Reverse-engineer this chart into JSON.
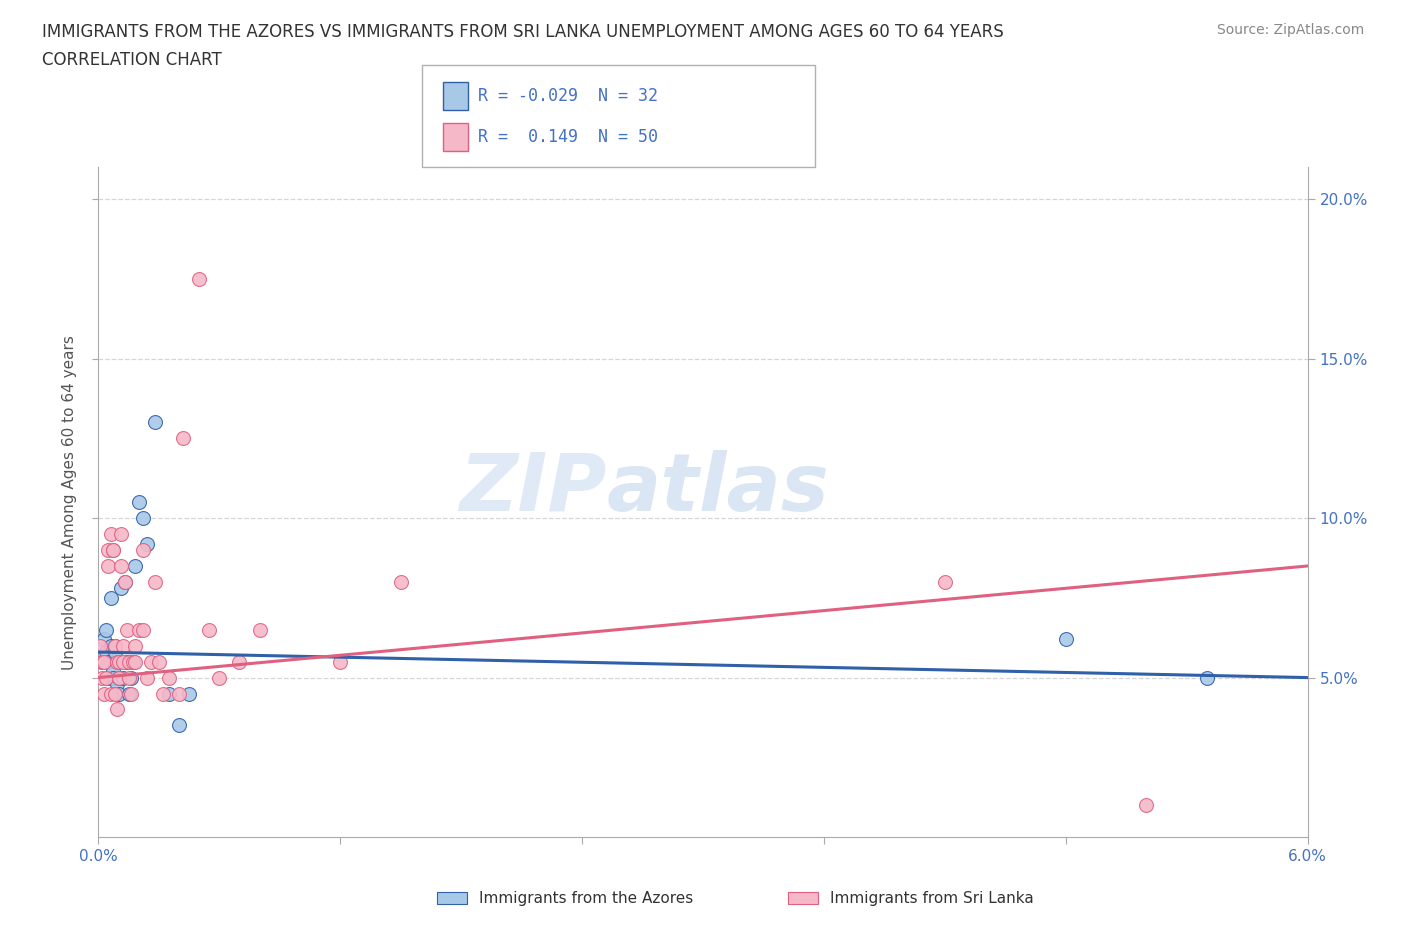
{
  "title_line1": "IMMIGRANTS FROM THE AZORES VS IMMIGRANTS FROM SRI LANKA UNEMPLOYMENT AMONG AGES 60 TO 64 YEARS",
  "title_line2": "CORRELATION CHART",
  "source": "Source: ZipAtlas.com",
  "ylabel": "Unemployment Among Ages 60 to 64 years",
  "legend_label1": "Immigrants from the Azores",
  "legend_label2": "Immigrants from Sri Lanka",
  "legend_R1": "R = -0.029",
  "legend_N1": "N = 32",
  "legend_R2": "R =  0.149",
  "legend_N2": "N = 50",
  "color_azores": "#a8c8e8",
  "color_srilanka": "#f5b8c8",
  "color_azores_line": "#3060a8",
  "color_srilanka_line": "#e06080",
  "color_axis_blue": "#4472c4",
  "watermark_zip": "ZIP",
  "watermark_atlas": "atlas",
  "azores_x": [
    0.02,
    0.03,
    0.04,
    0.04,
    0.05,
    0.05,
    0.06,
    0.06,
    0.07,
    0.07,
    0.08,
    0.08,
    0.09,
    0.1,
    0.1,
    0.11,
    0.12,
    0.13,
    0.14,
    0.15,
    0.16,
    0.17,
    0.18,
    0.2,
    0.22,
    0.24,
    0.28,
    0.35,
    0.4,
    0.45,
    4.8,
    5.5
  ],
  "azores_y": [
    5.5,
    6.2,
    5.8,
    6.5,
    5.0,
    5.5,
    6.0,
    7.5,
    5.2,
    5.0,
    5.8,
    6.0,
    4.8,
    5.0,
    4.5,
    7.8,
    5.0,
    8.0,
    5.5,
    4.5,
    5.0,
    5.5,
    8.5,
    10.5,
    10.0,
    9.2,
    13.0,
    4.5,
    3.5,
    4.5,
    6.2,
    5.0
  ],
  "srilanka_x": [
    0.01,
    0.02,
    0.02,
    0.03,
    0.03,
    0.04,
    0.05,
    0.05,
    0.06,
    0.06,
    0.07,
    0.07,
    0.08,
    0.08,
    0.09,
    0.09,
    0.1,
    0.1,
    0.11,
    0.11,
    0.12,
    0.12,
    0.13,
    0.14,
    0.15,
    0.15,
    0.16,
    0.17,
    0.18,
    0.18,
    0.2,
    0.22,
    0.22,
    0.24,
    0.26,
    0.28,
    0.3,
    0.32,
    0.35,
    0.4,
    0.42,
    0.5,
    0.55,
    0.6,
    0.7,
    0.8,
    1.2,
    1.5,
    4.2,
    5.2
  ],
  "srilanka_y": [
    6.0,
    5.5,
    5.0,
    5.5,
    4.5,
    5.0,
    8.5,
    9.0,
    9.5,
    4.5,
    9.0,
    9.0,
    6.0,
    4.5,
    4.0,
    5.5,
    5.0,
    5.5,
    8.5,
    9.5,
    5.5,
    6.0,
    8.0,
    6.5,
    5.5,
    5.0,
    4.5,
    5.5,
    5.5,
    6.0,
    6.5,
    6.5,
    9.0,
    5.0,
    5.5,
    8.0,
    5.5,
    4.5,
    5.0,
    4.5,
    12.5,
    17.5,
    6.5,
    5.0,
    5.5,
    6.5,
    5.5,
    8.0,
    8.0,
    1.0
  ],
  "xmin": 0.0,
  "xmax": 6.0,
  "ymin": 0.0,
  "ymax": 21.0,
  "ytick_values": [
    5,
    10,
    15,
    20
  ],
  "ytick_labels": [
    "5.0%",
    "10.0%",
    "15.0%",
    "20.0%"
  ],
  "xtick_positions": [
    0.0,
    1.2,
    2.4,
    3.6,
    4.8,
    6.0
  ],
  "grid_color": "#cccccc",
  "grid_alpha": 0.8
}
